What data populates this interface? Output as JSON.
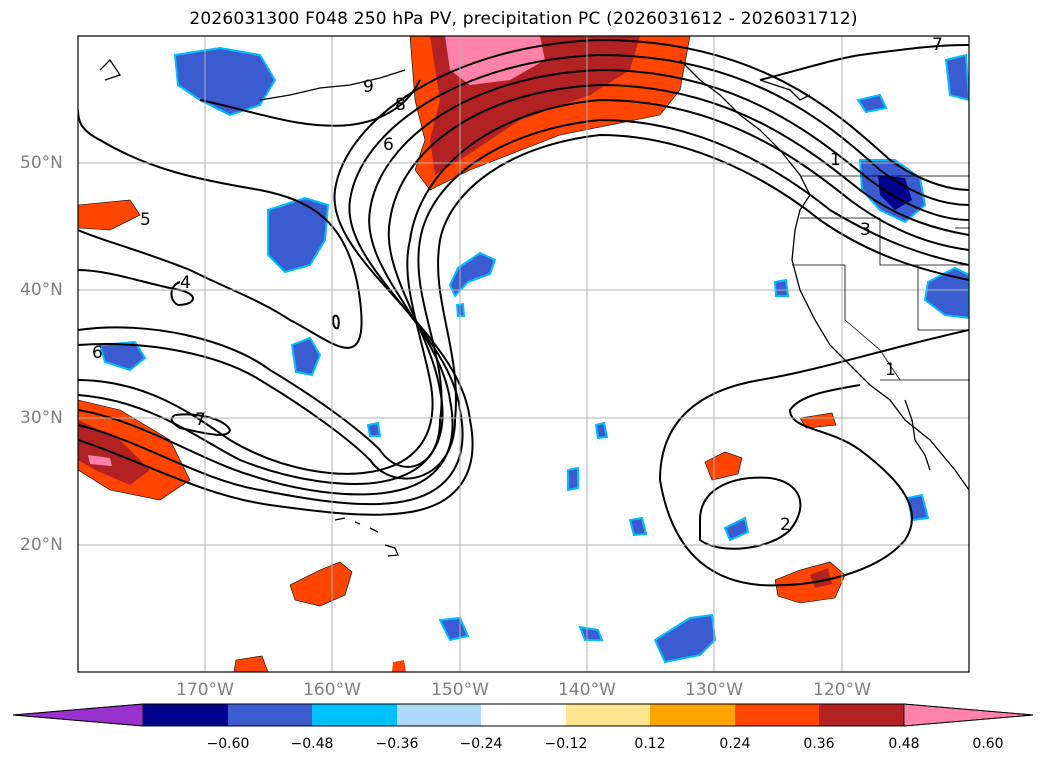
{
  "title": "2026031300 F048 250 hPa PV, precipitation PC (2026031612 - 2026031712)",
  "lat_labels": [
    "50°N",
    "40°N",
    "30°N",
    "20°N"
  ],
  "lon_labels": [
    "170°W",
    "160°W",
    "150°W",
    "140°W",
    "130°W",
    "120°W"
  ],
  "contour_labels": [
    "9",
    "8",
    "6",
    "5",
    "4",
    "6",
    "7",
    "7",
    "1",
    "1",
    "2",
    "3"
  ],
  "colorbar": {
    "ticks": [
      "−0.60",
      "−0.48",
      "−0.36",
      "−0.24",
      "−0.12",
      "0.12",
      "0.24",
      "0.36",
      "0.48",
      "0.60"
    ],
    "colors": [
      "#9932cc",
      "#00008b",
      "#3b5bd1",
      "#00bfff",
      "#add8f6",
      "#ffffff",
      "#ffe58f",
      "#ffa500",
      "#ff4500",
      "#b22222",
      "#ff82ab"
    ]
  },
  "shading": {
    "negative_colors": [
      "#add8f6",
      "#00bfff",
      "#3b5bd1",
      "#00008b"
    ],
    "positive_colors": [
      "#ffe58f",
      "#ffa500",
      "#ff4500",
      "#b22222",
      "#ff82ab"
    ]
  }
}
